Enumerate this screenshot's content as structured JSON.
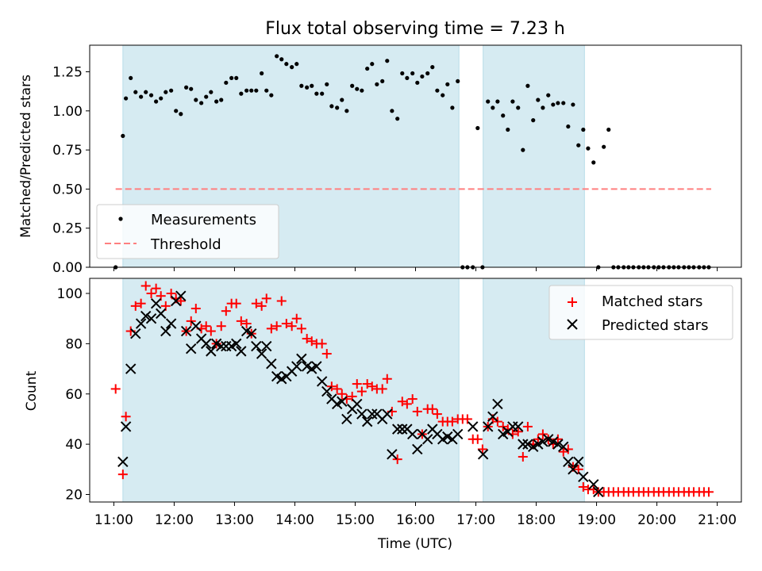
{
  "chart_data": [
    {
      "type": "scatter",
      "title": "Flux total observing time = 7.23 h",
      "xlabel": "",
      "ylabel": "Matched/Predicted stars",
      "xlim": [
        10.6,
        21.4
      ],
      "ylim": [
        0,
        1.42
      ],
      "yticks": [
        0.0,
        0.25,
        0.5,
        0.75,
        1.0,
        1.25
      ],
      "ytick_labels": [
        "0.00",
        "0.25",
        "0.50",
        "0.75",
        "1.00",
        "1.25"
      ],
      "shaded_intervals": [
        [
          11.15,
          16.72
        ],
        [
          17.12,
          18.8
        ]
      ],
      "threshold": {
        "name": "Threshold",
        "value": 0.5,
        "x_start": 11.03,
        "x_end": 20.9,
        "color": "#ff7f7f"
      },
      "legend": {
        "position": "lower-left",
        "entries": [
          "Measurements",
          "Threshold"
        ]
      },
      "series": [
        {
          "name": "Measurements",
          "color": "#000000",
          "x": [
            11.03,
            11.15,
            11.2,
            11.28,
            11.36,
            11.45,
            11.53,
            11.62,
            11.7,
            11.78,
            11.86,
            11.95,
            12.03,
            12.11,
            12.2,
            12.28,
            12.36,
            12.45,
            12.53,
            12.61,
            12.7,
            12.78,
            12.86,
            12.95,
            13.03,
            13.11,
            13.2,
            13.28,
            13.36,
            13.45,
            13.53,
            13.61,
            13.7,
            13.78,
            13.86,
            13.95,
            14.03,
            14.11,
            14.2,
            14.28,
            14.36,
            14.45,
            14.53,
            14.61,
            14.7,
            14.78,
            14.86,
            14.95,
            15.03,
            15.11,
            15.2,
            15.28,
            15.36,
            15.45,
            15.53,
            15.61,
            15.7,
            15.78,
            15.86,
            15.95,
            16.03,
            16.11,
            16.2,
            16.28,
            16.36,
            16.45,
            16.53,
            16.61,
            16.7,
            16.78,
            16.86,
            16.95,
            17.03,
            17.11,
            17.2,
            17.28,
            17.36,
            17.45,
            17.53,
            17.61,
            17.7,
            17.78,
            17.86,
            17.95,
            18.03,
            18.11,
            18.2,
            18.28,
            18.36,
            18.45,
            18.53,
            18.61,
            18.7,
            18.78,
            18.86,
            18.95,
            19.03,
            19.12,
            19.2,
            19.28,
            19.36,
            19.45,
            19.53,
            19.61,
            19.7,
            19.78,
            19.86,
            19.95,
            20.03,
            20.11,
            20.2,
            20.28,
            20.36,
            20.45,
            20.53,
            20.61,
            20.7,
            20.78,
            20.86
          ],
          "y": [
            0.0,
            0.84,
            1.08,
            1.21,
            1.12,
            1.09,
            1.12,
            1.1,
            1.06,
            1.08,
            1.12,
            1.13,
            1.0,
            0.98,
            1.15,
            1.14,
            1.07,
            1.05,
            1.09,
            1.12,
            1.06,
            1.07,
            1.18,
            1.21,
            1.21,
            1.11,
            1.13,
            1.13,
            1.13,
            1.24,
            1.13,
            1.1,
            1.35,
            1.33,
            1.3,
            1.28,
            1.3,
            1.16,
            1.15,
            1.16,
            1.11,
            1.11,
            1.17,
            1.03,
            1.02,
            1.07,
            1.0,
            1.16,
            1.14,
            1.13,
            1.27,
            1.3,
            1.17,
            1.19,
            1.32,
            1.0,
            0.95,
            1.24,
            1.21,
            1.24,
            1.18,
            1.22,
            1.24,
            1.28,
            1.13,
            1.1,
            1.17,
            1.02,
            1.19,
            0.0,
            0.0,
            0.0,
            0.89,
            0.0,
            1.06,
            1.02,
            1.06,
            0.97,
            0.88,
            1.06,
            1.02,
            0.75,
            1.16,
            0.94,
            1.07,
            1.02,
            1.1,
            1.04,
            1.05,
            1.05,
            0.9,
            1.04,
            0.78,
            0.88,
            0.76,
            0.67,
            0.0,
            0.77,
            0.88,
            0.0,
            0.0,
            0.0,
            0.0,
            0.0,
            0.0,
            0.0,
            0.0,
            0.0,
            0.0,
            0.0,
            0.0,
            0.0,
            0.0,
            0.0,
            0.0,
            0.0,
            0.0,
            0.0,
            0.0
          ]
        }
      ]
    },
    {
      "type": "scatter",
      "title": "",
      "xlabel": "Time (UTC)",
      "ylabel": "Count",
      "xlim": [
        10.6,
        21.4
      ],
      "ylim": [
        17,
        106
      ],
      "xticks": [
        11,
        12,
        13,
        14,
        15,
        16,
        17,
        18,
        19,
        20,
        21
      ],
      "xtick_labels": [
        "11:00",
        "12:00",
        "13:00",
        "14:00",
        "15:00",
        "16:00",
        "17:00",
        "18:00",
        "19:00",
        "20:00",
        "21:00"
      ],
      "yticks": [
        20,
        40,
        60,
        80,
        100
      ],
      "ytick_labels": [
        "20",
        "40",
        "60",
        "80",
        "100"
      ],
      "shaded_intervals": [
        [
          11.15,
          16.72
        ],
        [
          17.12,
          18.8
        ]
      ],
      "legend": {
        "position": "upper-right",
        "entries": [
          "Matched stars",
          "Predicted stars"
        ]
      },
      "series": [
        {
          "name": "Matched stars",
          "marker": "+",
          "color": "#ff0000",
          "x": [
            11.03,
            11.15,
            11.2,
            11.28,
            11.36,
            11.45,
            11.53,
            11.62,
            11.7,
            11.78,
            11.86,
            11.95,
            12.03,
            12.11,
            12.2,
            12.28,
            12.36,
            12.45,
            12.53,
            12.61,
            12.7,
            12.78,
            12.86,
            12.95,
            13.03,
            13.11,
            13.2,
            13.28,
            13.36,
            13.45,
            13.53,
            13.61,
            13.7,
            13.78,
            13.86,
            13.95,
            14.03,
            14.11,
            14.2,
            14.28,
            14.36,
            14.45,
            14.53,
            14.61,
            14.7,
            14.78,
            14.86,
            14.95,
            15.03,
            15.11,
            15.2,
            15.28,
            15.36,
            15.45,
            15.53,
            15.61,
            15.7,
            15.78,
            15.86,
            15.95,
            16.03,
            16.11,
            16.2,
            16.28,
            16.36,
            16.45,
            16.53,
            16.61,
            16.7,
            16.78,
            16.86,
            16.95,
            17.03,
            17.11,
            17.2,
            17.28,
            17.36,
            17.45,
            17.53,
            17.61,
            17.7,
            17.78,
            17.86,
            17.95,
            18.03,
            18.11,
            18.2,
            18.28,
            18.36,
            18.45,
            18.53,
            18.61,
            18.7,
            18.78,
            18.86,
            18.95,
            19.03,
            19.12,
            19.2,
            19.28,
            19.36,
            19.45,
            19.53,
            19.61,
            19.7,
            19.78,
            19.86,
            19.95,
            20.03,
            20.11,
            20.2,
            20.28,
            20.36,
            20.45,
            20.53,
            20.61,
            20.7,
            20.78,
            20.86
          ],
          "y": [
            62,
            28,
            51,
            85,
            95,
            96,
            103,
            100,
            102,
            99,
            95,
            100,
            98,
            97,
            85,
            89,
            94,
            86,
            87,
            85,
            80,
            87,
            93,
            96,
            96,
            89,
            88,
            84,
            96,
            95,
            98,
            86,
            87,
            97,
            88,
            87,
            90,
            86,
            82,
            81,
            80,
            80,
            76,
            63,
            62,
            60,
            58,
            59,
            64,
            61,
            64,
            63,
            62,
            62,
            66,
            53,
            34,
            57,
            56,
            58,
            53,
            44,
            54,
            54,
            52,
            49,
            49,
            49,
            50,
            50,
            50,
            42,
            42,
            38,
            47,
            50,
            49,
            47,
            46,
            44,
            45,
            35,
            47,
            40,
            42,
            44,
            42,
            40,
            42,
            37,
            38,
            31,
            30,
            23,
            22,
            22,
            21,
            21,
            21,
            21,
            21,
            21,
            21,
            21,
            21,
            21,
            21,
            21,
            21,
            21,
            21,
            21,
            21,
            21,
            21,
            21,
            21,
            21,
            21
          ]
        },
        {
          "name": "Predicted stars",
          "marker": "x",
          "color": "#000000",
          "x": [
            11.15,
            11.2,
            11.28,
            11.36,
            11.45,
            11.53,
            11.62,
            11.7,
            11.78,
            11.86,
            11.95,
            12.03,
            12.11,
            12.2,
            12.28,
            12.36,
            12.45,
            12.53,
            12.61,
            12.7,
            12.78,
            12.86,
            12.95,
            13.03,
            13.11,
            13.2,
            13.28,
            13.36,
            13.45,
            13.53,
            13.61,
            13.7,
            13.78,
            13.86,
            13.95,
            14.03,
            14.11,
            14.2,
            14.28,
            14.36,
            14.45,
            14.53,
            14.61,
            14.7,
            14.78,
            14.86,
            14.95,
            15.03,
            15.11,
            15.2,
            15.28,
            15.36,
            15.45,
            15.53,
            15.61,
            15.7,
            15.78,
            15.86,
            15.95,
            16.03,
            16.11,
            16.2,
            16.28,
            16.36,
            16.45,
            16.53,
            16.61,
            16.7,
            16.95,
            17.12,
            17.2,
            17.28,
            17.36,
            17.45,
            17.53,
            17.61,
            17.7,
            17.78,
            17.86,
            17.95,
            18.03,
            18.11,
            18.2,
            18.28,
            18.36,
            18.45,
            18.53,
            18.61,
            18.7,
            18.78,
            18.95,
            19.03
          ],
          "y": [
            33,
            47,
            70,
            84,
            88,
            91,
            90,
            96,
            92,
            85,
            88,
            97,
            99,
            85,
            78,
            87,
            82,
            80,
            77,
            80,
            79,
            79,
            79,
            80,
            77,
            85,
            84,
            79,
            76,
            79,
            72,
            67,
            66,
            67,
            69,
            71,
            74,
            71,
            70,
            71,
            65,
            61,
            58,
            56,
            57,
            50,
            54,
            56,
            52,
            49,
            52,
            52,
            50,
            52,
            36,
            46,
            46,
            46,
            44,
            38,
            44,
            42,
            46,
            44,
            42,
            43,
            42,
            44,
            47,
            36,
            47,
            51,
            56,
            44,
            45,
            47,
            47,
            40,
            40,
            39,
            40,
            41,
            42,
            41,
            40,
            39,
            33,
            30,
            33,
            27,
            24,
            21
          ]
        }
      ]
    }
  ]
}
